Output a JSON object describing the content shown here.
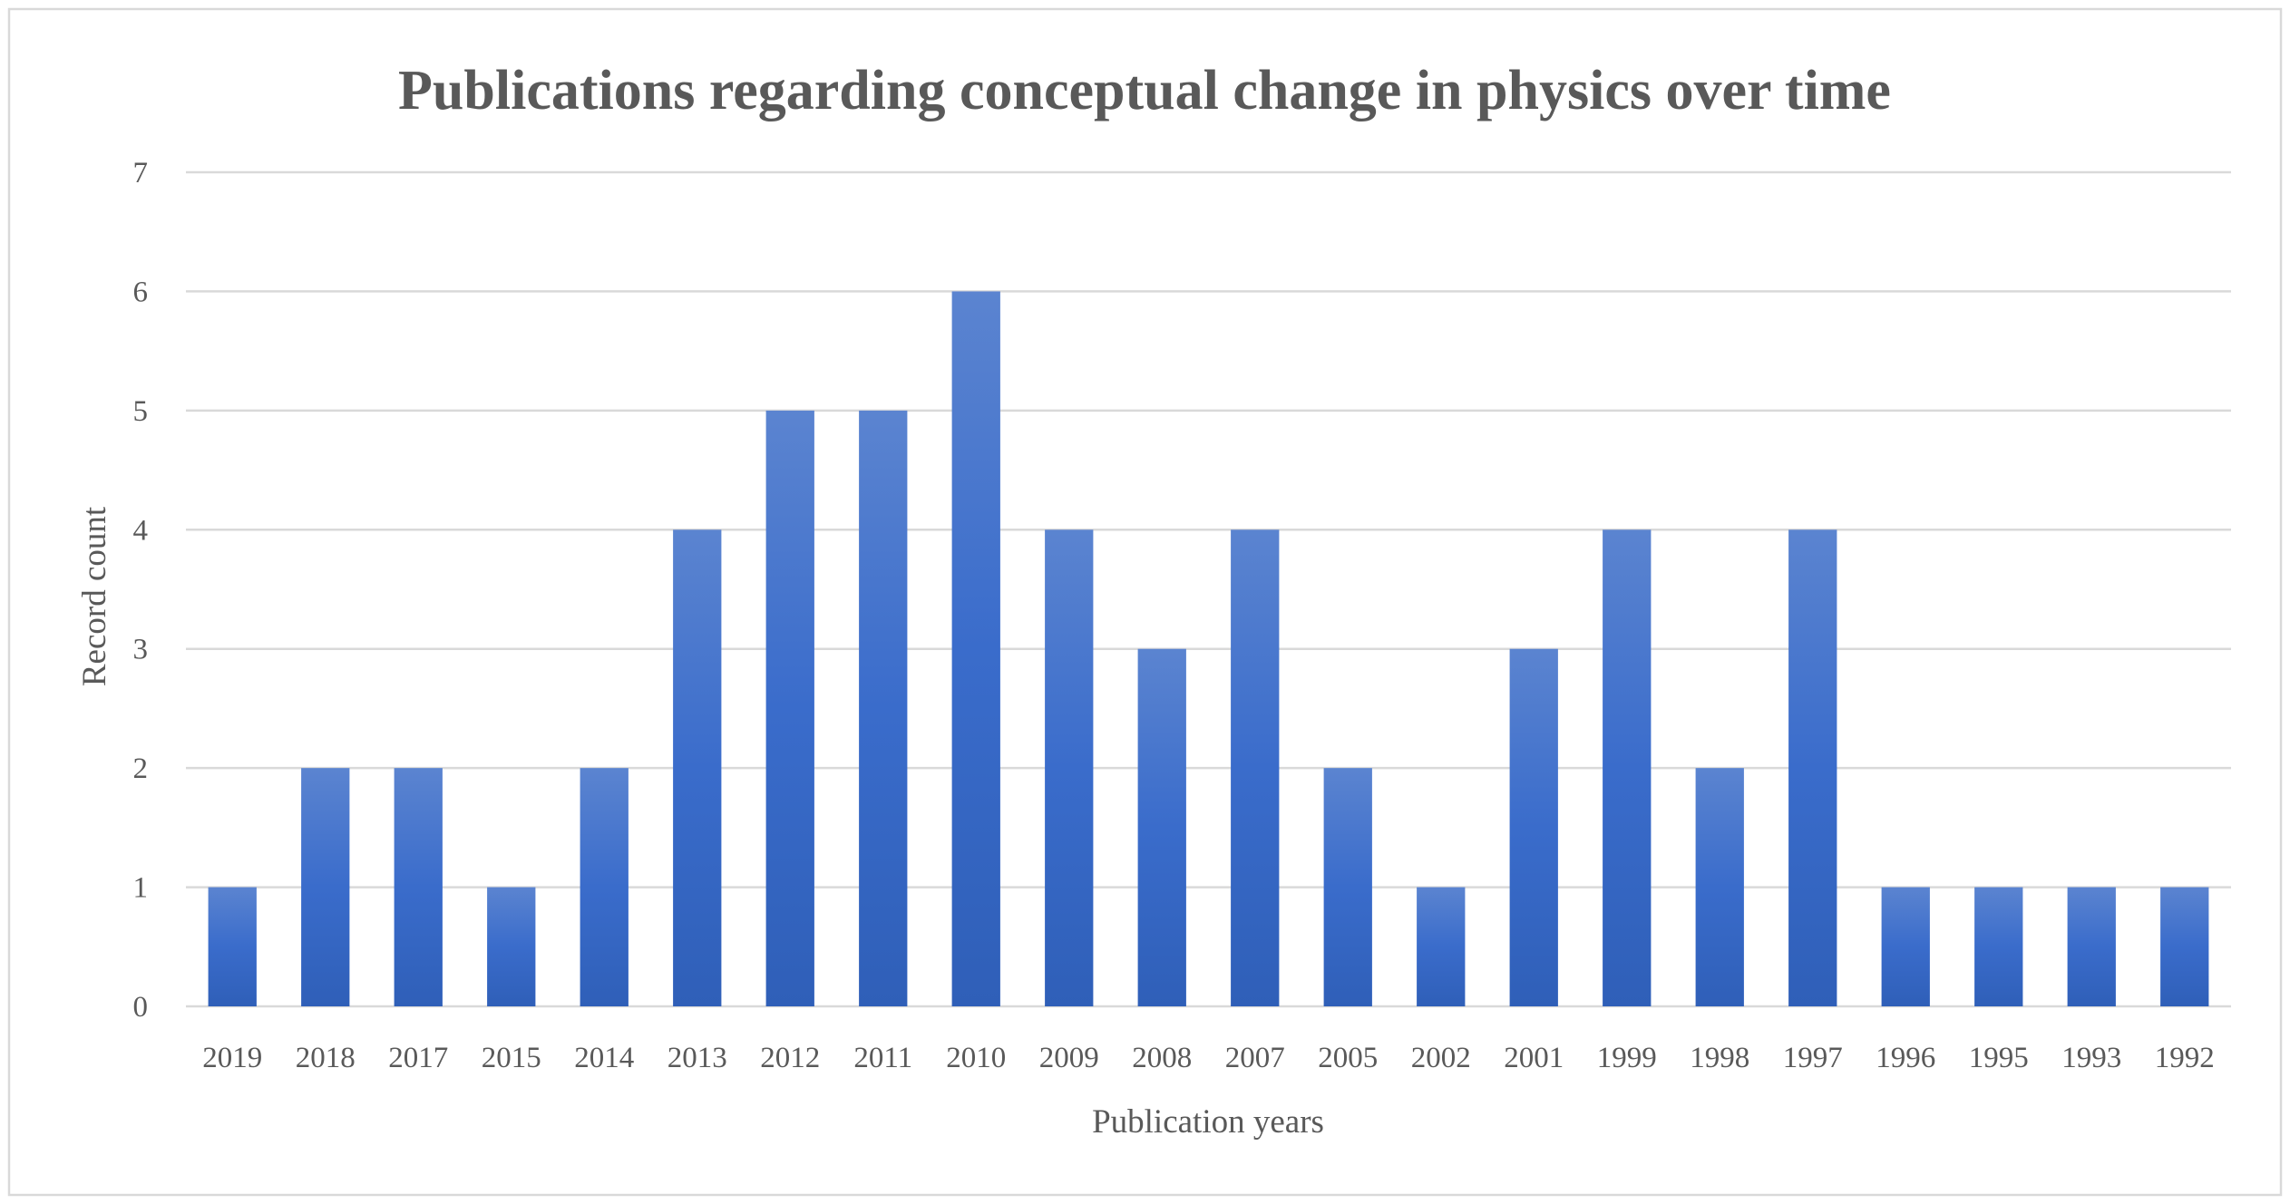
{
  "chart_data": {
    "type": "bar",
    "title": "Publications regarding conceptual change in physics over time",
    "xlabel": "Publication years",
    "ylabel": "Record count",
    "categories": [
      "2019",
      "2018",
      "2017",
      "2015",
      "2014",
      "2013",
      "2012",
      "2011",
      "2010",
      "2009",
      "2008",
      "2007",
      "2005",
      "2002",
      "2001",
      "1999",
      "1998",
      "1997",
      "1996",
      "1995",
      "1993",
      "1992"
    ],
    "values": [
      1,
      2,
      2,
      1,
      2,
      4,
      5,
      5,
      6,
      4,
      3,
      4,
      2,
      1,
      3,
      4,
      2,
      4,
      1,
      1,
      1,
      1
    ],
    "ylim": [
      0,
      7
    ],
    "yticks": [
      "0",
      "1",
      "2",
      "3",
      "4",
      "5",
      "6",
      "7"
    ],
    "grid": true,
    "legend": "none",
    "colors": {
      "bar_top": "#5b84d0",
      "bar_mid": "#3a6ccb",
      "bar_bottom": "#2f5fb8",
      "frame": "#d9d9d9"
    }
  }
}
